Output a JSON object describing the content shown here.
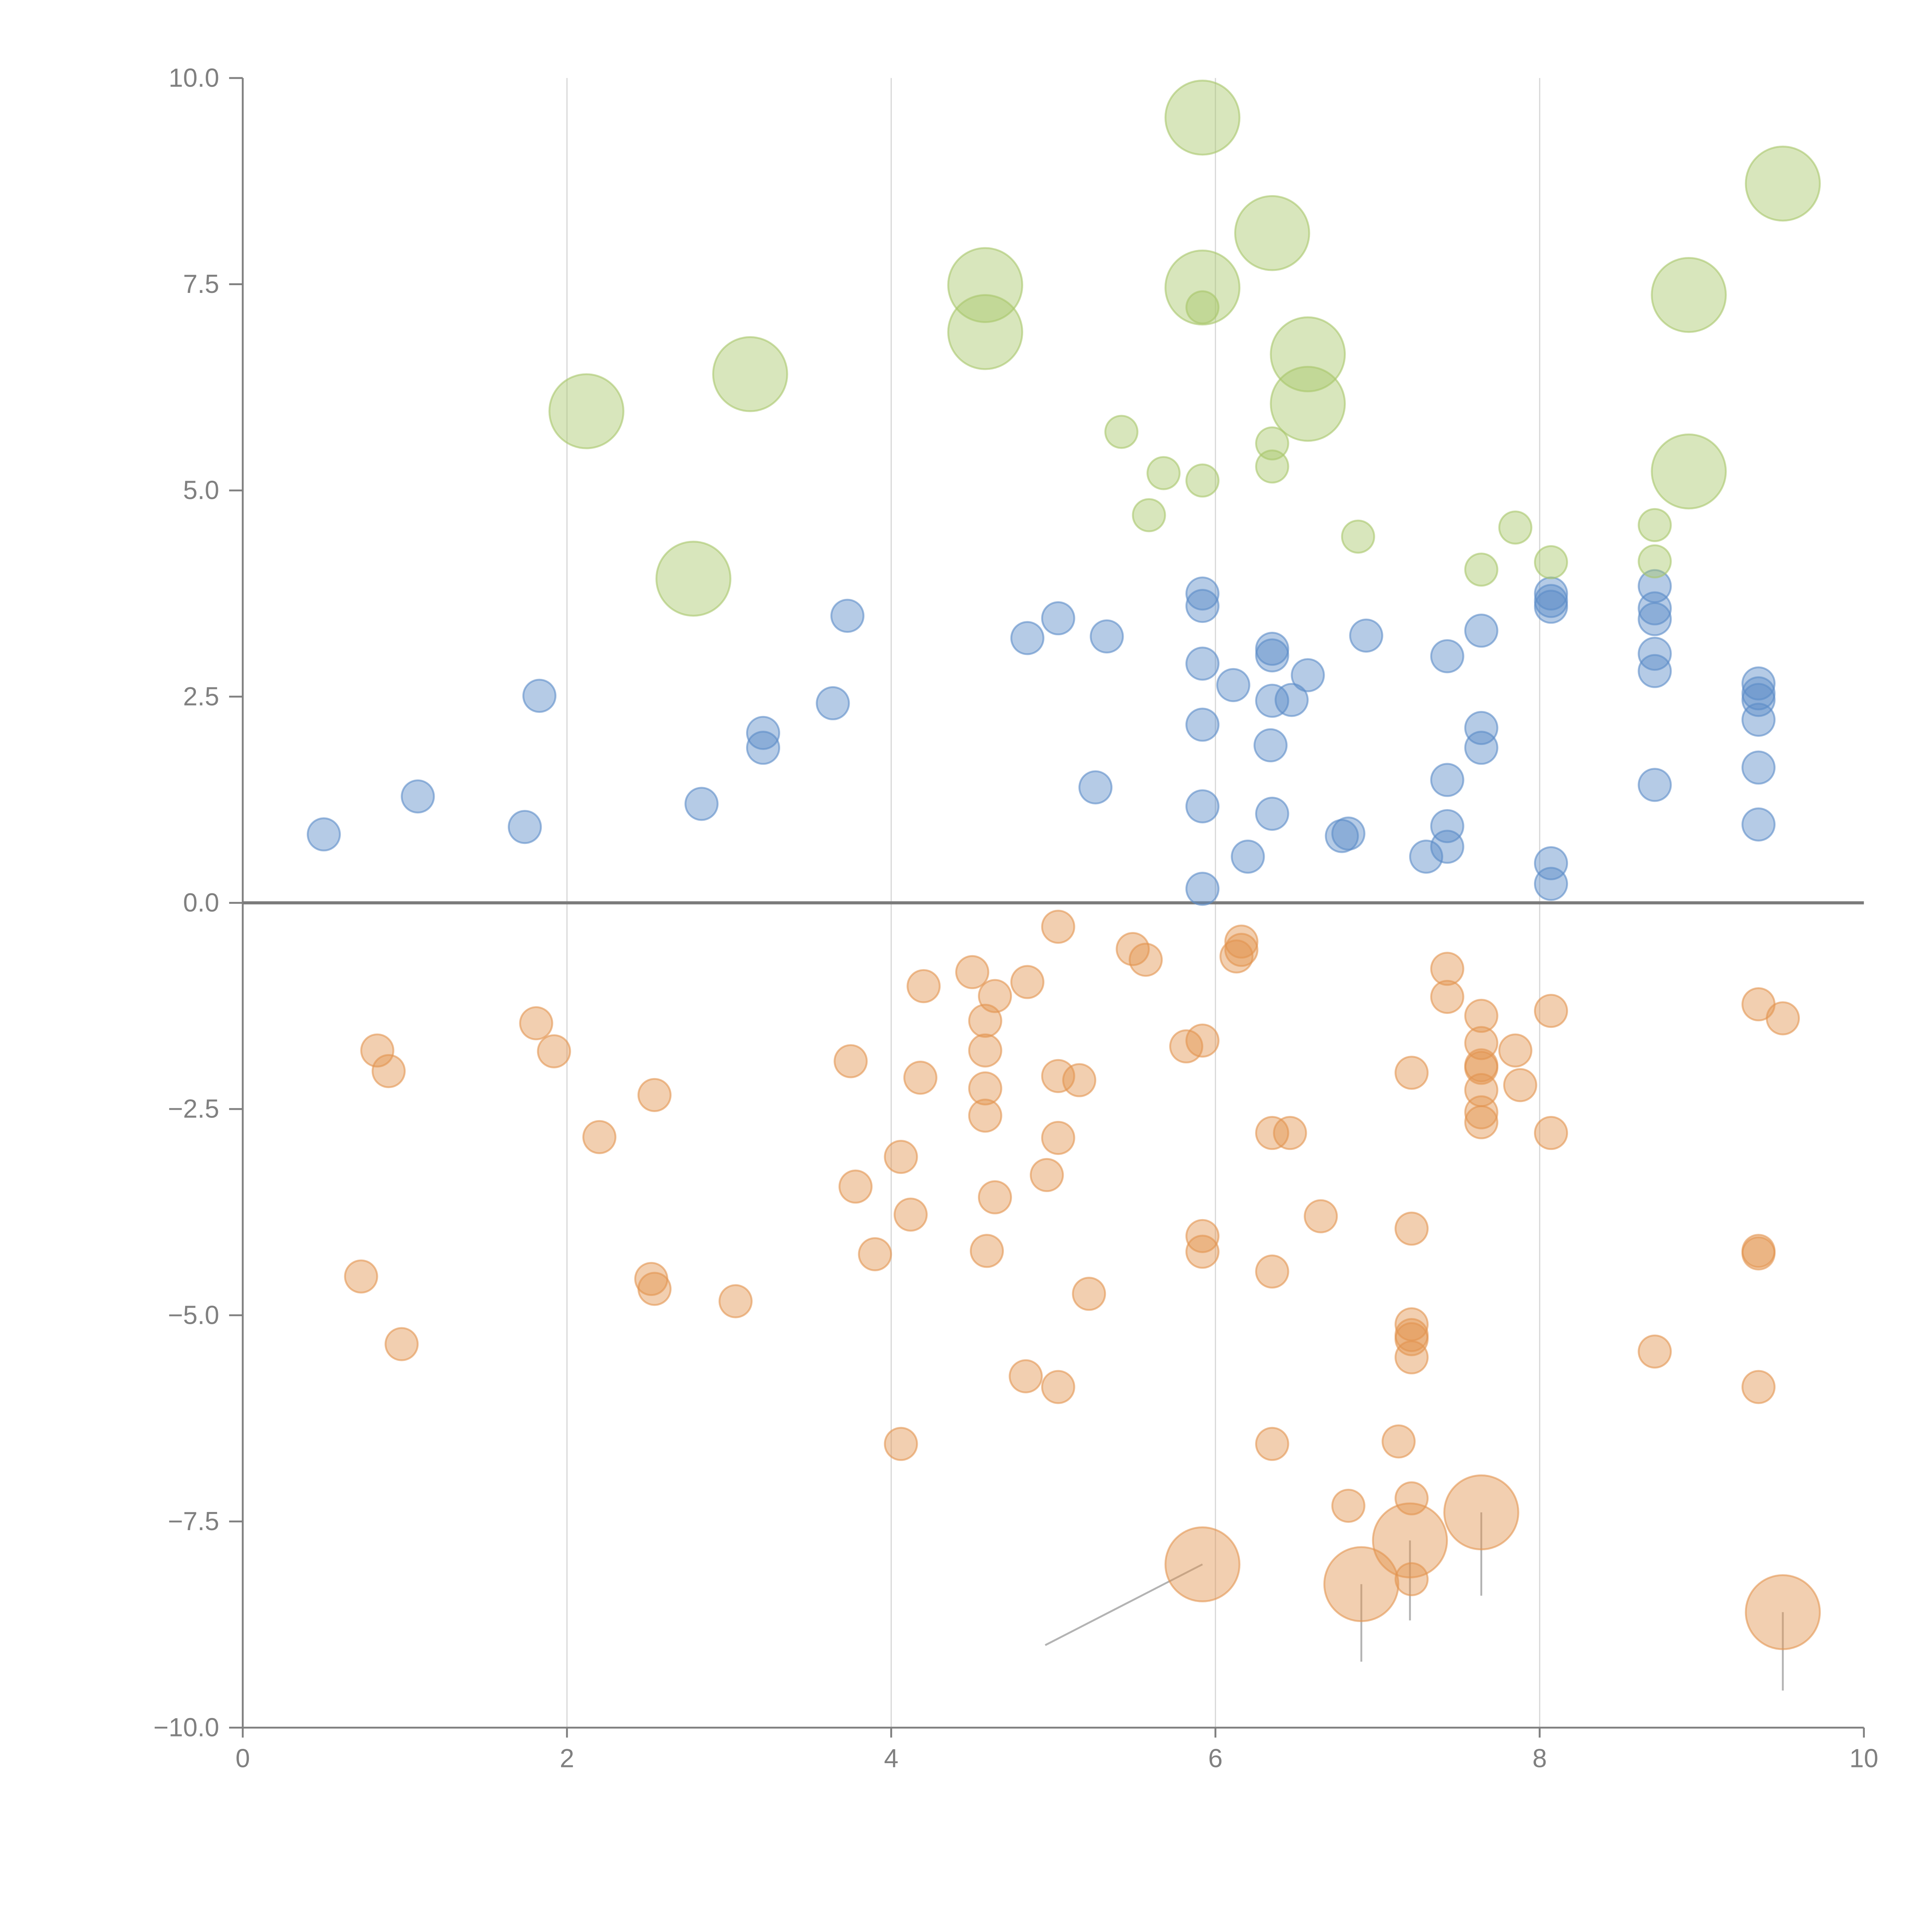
{
  "chart_data": {
    "type": "scatter",
    "title": "",
    "xlabel": "",
    "ylabel": "",
    "xlim": [
      0,
      10
    ],
    "ylim": [
      -10,
      10
    ],
    "grid": "vertical gridlines at x ticks",
    "x_ticks": [
      "0",
      "2",
      "4",
      "6",
      "8",
      "10"
    ],
    "y_ticks": [
      "10.0",
      "7.5",
      "5.0",
      "2.5",
      "0.0",
      "−2.5",
      "−5.0",
      "−7.5",
      "−10.0"
    ],
    "x_tick_values": [
      0,
      2,
      4,
      6,
      8,
      10
    ],
    "y_tick_values": [
      10,
      7.5,
      5,
      2.5,
      0,
      -2.5,
      -5,
      -7.5,
      -10
    ],
    "point_format": "[x, y, size]",
    "series": [
      {
        "name": "blue",
        "color": "#5b8cc8",
        "points": [
          [
            0.5,
            0.83,
            1
          ],
          [
            1.08,
            1.29,
            1
          ],
          [
            1.74,
            0.92,
            1
          ],
          [
            1.83,
            2.51,
            1
          ],
          [
            2.83,
            1.2,
            1
          ],
          [
            3.21,
            2.06,
            1
          ],
          [
            3.21,
            1.88,
            1
          ],
          [
            3.64,
            2.42,
            1
          ],
          [
            3.73,
            3.48,
            1
          ],
          [
            4.84,
            3.21,
            1
          ],
          [
            5.03,
            3.45,
            1
          ],
          [
            5.26,
            1.4,
            1
          ],
          [
            5.33,
            3.23,
            1
          ],
          [
            5.92,
            3.75,
            1
          ],
          [
            5.92,
            3.6,
            1
          ],
          [
            5.92,
            2.9,
            1
          ],
          [
            5.92,
            2.16,
            1
          ],
          [
            5.92,
            1.17,
            1
          ],
          [
            5.92,
            0.17,
            1
          ],
          [
            6.11,
            2.64,
            1
          ],
          [
            6.2,
            0.56,
            1
          ],
          [
            6.34,
            1.91,
            1
          ],
          [
            6.35,
            3.08,
            1
          ],
          [
            6.35,
            3.0,
            1
          ],
          [
            6.35,
            2.45,
            1
          ],
          [
            6.35,
            1.08,
            1
          ],
          [
            6.47,
            2.46,
            1
          ],
          [
            6.57,
            2.76,
            1
          ],
          [
            6.78,
            0.81,
            1
          ],
          [
            6.82,
            0.84,
            1
          ],
          [
            6.93,
            3.24,
            1
          ],
          [
            7.3,
            0.56,
            1
          ],
          [
            7.43,
            2.99,
            1
          ],
          [
            7.43,
            1.49,
            1
          ],
          [
            7.43,
            0.93,
            1
          ],
          [
            7.43,
            0.68,
            1
          ],
          [
            7.64,
            3.3,
            1
          ],
          [
            7.64,
            2.12,
            1
          ],
          [
            7.64,
            1.88,
            1
          ],
          [
            8.07,
            3.75,
            1
          ],
          [
            8.07,
            3.66,
            1
          ],
          [
            8.07,
            3.59,
            1
          ],
          [
            8.07,
            0.48,
            1
          ],
          [
            8.07,
            0.23,
            1
          ],
          [
            8.71,
            3.84,
            1
          ],
          [
            8.71,
            3.57,
            1
          ],
          [
            8.71,
            3.44,
            1
          ],
          [
            8.71,
            3.02,
            1
          ],
          [
            8.71,
            2.81,
            1
          ],
          [
            8.71,
            1.43,
            1
          ],
          [
            9.35,
            2.66,
            1
          ],
          [
            9.35,
            2.54,
            1
          ],
          [
            9.35,
            2.46,
            1
          ],
          [
            9.35,
            2.22,
            1
          ],
          [
            9.35,
            1.64,
            1
          ],
          [
            9.35,
            0.95,
            1
          ]
        ]
      },
      {
        "name": "green",
        "color": "#a9c76a",
        "points": [
          [
            5.92,
            9.52,
            2.3
          ],
          [
            9.5,
            8.72,
            2.3
          ],
          [
            6.35,
            8.12,
            2.3
          ],
          [
            4.58,
            7.49,
            2.3
          ],
          [
            5.92,
            7.46,
            2.3
          ],
          [
            5.92,
            7.22,
            1
          ],
          [
            8.92,
            7.37,
            2.3
          ],
          [
            4.58,
            6.92,
            2.3
          ],
          [
            6.57,
            6.65,
            2.3
          ],
          [
            3.13,
            6.41,
            2.3
          ],
          [
            2.12,
            5.96,
            2.3
          ],
          [
            6.57,
            6.05,
            2.3
          ],
          [
            5.42,
            5.71,
            1
          ],
          [
            6.35,
            5.57,
            1
          ],
          [
            6.35,
            5.29,
            1
          ],
          [
            5.68,
            5.21,
            1
          ],
          [
            5.92,
            5.12,
            1
          ],
          [
            8.92,
            5.23,
            2.3
          ],
          [
            5.59,
            4.7,
            1
          ],
          [
            8.71,
            4.58,
            1
          ],
          [
            7.85,
            4.55,
            1
          ],
          [
            6.88,
            4.44,
            1
          ],
          [
            8.71,
            4.14,
            1
          ],
          [
            8.07,
            4.13,
            1
          ],
          [
            7.64,
            4.04,
            1
          ],
          [
            2.78,
            3.93,
            2.3
          ]
        ]
      },
      {
        "name": "orange",
        "color": "#e39450",
        "points": [
          [
            5.03,
            -0.29,
            1
          ],
          [
            5.49,
            -0.56,
            1
          ],
          [
            5.57,
            -0.69,
            1
          ],
          [
            6.16,
            -0.47,
            1
          ],
          [
            6.16,
            -0.57,
            1
          ],
          [
            6.13,
            -0.65,
            1
          ],
          [
            4.5,
            -0.84,
            1
          ],
          [
            4.84,
            -0.96,
            1
          ],
          [
            4.2,
            -1.01,
            1
          ],
          [
            4.64,
            -1.13,
            1
          ],
          [
            7.43,
            -0.8,
            1
          ],
          [
            7.43,
            -1.14,
            1
          ],
          [
            8.07,
            -1.31,
            1
          ],
          [
            9.35,
            -1.23,
            1
          ],
          [
            9.5,
            -1.4,
            1
          ],
          [
            1.81,
            -1.46,
            1
          ],
          [
            4.58,
            -1.43,
            1
          ],
          [
            0.83,
            -1.79,
            1
          ],
          [
            1.92,
            -1.8,
            1
          ],
          [
            0.9,
            -2.04,
            1
          ],
          [
            4.58,
            -1.79,
            1
          ],
          [
            5.82,
            -1.74,
            1
          ],
          [
            5.92,
            -1.67,
            1
          ],
          [
            7.64,
            -1.37,
            1
          ],
          [
            7.64,
            -1.7,
            1
          ],
          [
            7.64,
            -1.97,
            1
          ],
          [
            7.64,
            -2.0,
            1
          ],
          [
            7.85,
            -1.79,
            1
          ],
          [
            7.88,
            -2.21,
            1
          ],
          [
            7.64,
            -2.27,
            1
          ],
          [
            7.64,
            -2.54,
            1
          ],
          [
            7.64,
            -2.66,
            1
          ],
          [
            7.21,
            -2.06,
            1
          ],
          [
            3.75,
            -1.92,
            1
          ],
          [
            4.18,
            -2.12,
            1
          ],
          [
            4.58,
            -2.25,
            1
          ],
          [
            4.58,
            -2.58,
            1
          ],
          [
            5.03,
            -2.1,
            1
          ],
          [
            5.16,
            -2.15,
            1
          ],
          [
            2.54,
            -2.33,
            1
          ],
          [
            2.2,
            -2.84,
            1
          ],
          [
            5.03,
            -2.85,
            1
          ],
          [
            6.35,
            -2.79,
            1
          ],
          [
            6.46,
            -2.79,
            1
          ],
          [
            8.07,
            -2.79,
            1
          ],
          [
            4.06,
            -3.08,
            1
          ],
          [
            4.96,
            -3.3,
            1
          ],
          [
            3.78,
            -3.44,
            1
          ],
          [
            4.64,
            -3.57,
            1
          ],
          [
            4.12,
            -3.78,
            1
          ],
          [
            6.65,
            -3.8,
            1
          ],
          [
            7.21,
            -3.95,
            1
          ],
          [
            5.92,
            -4.04,
            1
          ],
          [
            5.92,
            -4.23,
            1
          ],
          [
            9.35,
            -4.22,
            1
          ],
          [
            9.35,
            -4.25,
            1
          ],
          [
            4.59,
            -4.22,
            1
          ],
          [
            3.9,
            -4.26,
            1
          ],
          [
            0.73,
            -4.53,
            1
          ],
          [
            2.52,
            -4.56,
            1
          ],
          [
            2.54,
            -4.68,
            1
          ],
          [
            6.35,
            -4.47,
            1
          ],
          [
            5.22,
            -4.74,
            1
          ],
          [
            3.04,
            -4.83,
            1
          ],
          [
            0.98,
            -5.35,
            1
          ],
          [
            7.21,
            -5.11,
            1
          ],
          [
            7.21,
            -5.24,
            1
          ],
          [
            7.21,
            -5.29,
            1
          ],
          [
            7.21,
            -5.51,
            1
          ],
          [
            8.71,
            -5.44,
            1
          ],
          [
            9.35,
            -5.87,
            1
          ],
          [
            4.83,
            -5.74,
            1
          ],
          [
            5.03,
            -5.87,
            1
          ],
          [
            4.06,
            -6.56,
            1
          ],
          [
            6.35,
            -6.56,
            1
          ],
          [
            7.13,
            -6.53,
            1
          ],
          [
            6.82,
            -7.31,
            1
          ],
          [
            7.21,
            -7.22,
            1
          ],
          [
            7.21,
            -8.2,
            1
          ],
          [
            5.92,
            -8.02,
            2.3
          ],
          [
            6.9,
            -8.26,
            2.3
          ],
          [
            7.2,
            -7.73,
            2.3
          ],
          [
            7.64,
            -7.39,
            2.3
          ],
          [
            9.5,
            -8.6,
            2.3
          ]
        ]
      }
    ],
    "leader_lines": [
      [
        [
          5.92,
          -8.02
        ],
        [
          4.95,
          -9.0
        ]
      ],
      [
        [
          6.9,
          -8.26
        ],
        [
          6.9,
          -9.2
        ]
      ],
      [
        [
          7.2,
          -7.73
        ],
        [
          7.2,
          -8.7
        ]
      ],
      [
        [
          7.64,
          -7.39
        ],
        [
          7.64,
          -8.4
        ]
      ],
      [
        [
          9.5,
          -8.6
        ],
        [
          9.5,
          -9.55
        ]
      ]
    ]
  }
}
